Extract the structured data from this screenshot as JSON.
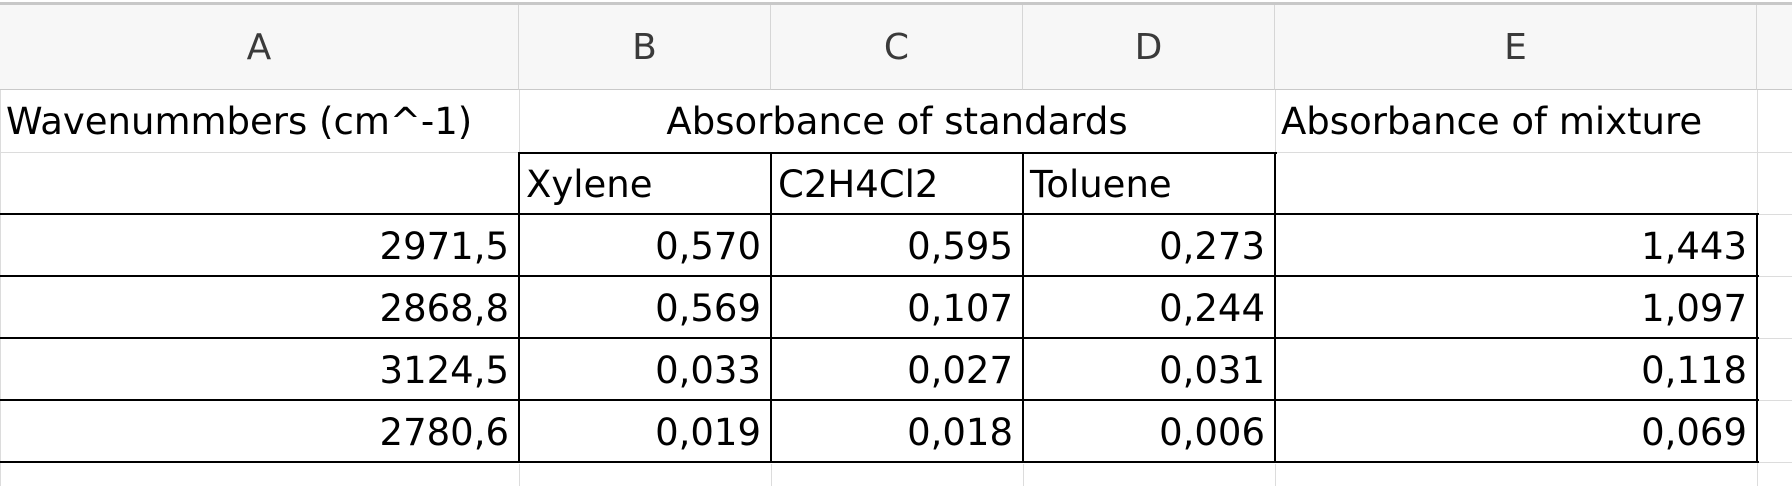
{
  "column_headers": [
    "A",
    "B",
    "C",
    "D",
    "E"
  ],
  "row1": {
    "a": "Wavenummbers (cm^-1)",
    "bcd_merged": "Absorbance of standards",
    "e": "Absorbance of mixture"
  },
  "row2": {
    "b": "Xylene",
    "c": "C2H4Cl2",
    "d": "Toluene"
  },
  "data_rows": [
    [
      "2971,5",
      "0,570",
      "0,595",
      "0,273",
      "1,443"
    ],
    [
      "2868,8",
      "0,569",
      "0,107",
      "0,244",
      "1,097"
    ],
    [
      "3124,5",
      "0,033",
      "0,027",
      "0,031",
      "0,118"
    ],
    [
      "2780,6",
      "0,019",
      "0,018",
      "0,006",
      "0,069"
    ]
  ]
}
